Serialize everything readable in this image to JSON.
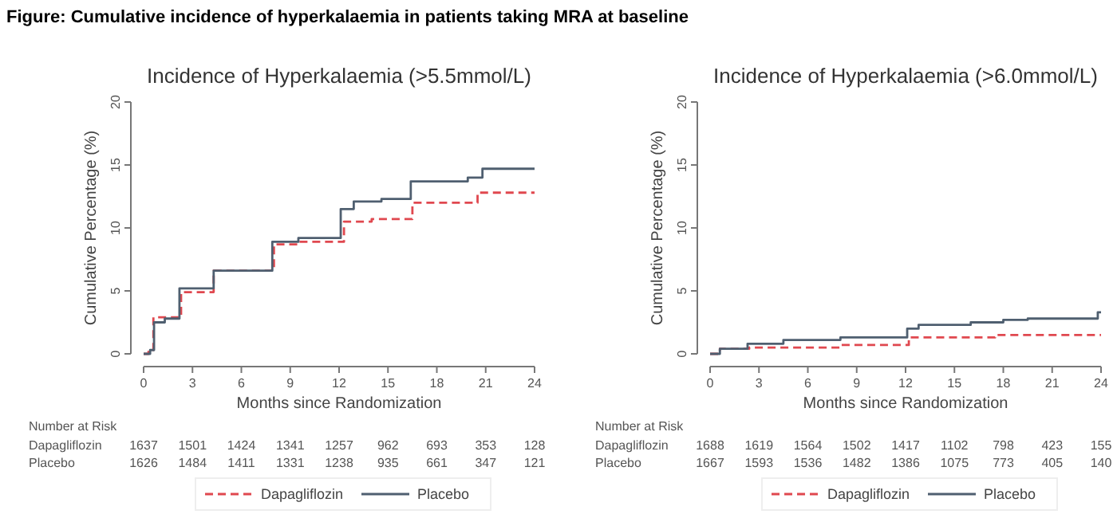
{
  "chart_data": [
    {
      "type": "step",
      "title": "Incidence of Hyperkalaemia (>5.5mmol/L)",
      "xlabel": "Months since Randomization",
      "ylabel": "Cumulative Percentage (%)",
      "xlim": [
        0,
        24
      ],
      "xticks": [
        0,
        3,
        6,
        9,
        12,
        15,
        18,
        21,
        24
      ],
      "ylim": [
        0,
        20
      ],
      "yticks": [
        0,
        5,
        10,
        15,
        20
      ],
      "legend": "bottom",
      "grid": false,
      "annotations": [
        "Figure: Cumulative incidence of hyperkalaemia in patients taking MRA at baseline",
        "Number at Risk",
        "Dapagliflozin",
        "1637",
        "1501",
        "1424",
        "1341",
        "1257",
        "962",
        "693",
        "353",
        "128",
        "Placebo",
        "1626",
        "1484",
        "1411",
        "1331",
        "1238",
        "935",
        "661",
        "347",
        "121"
      ],
      "series": [
        {
          "name": "Dapagliflozin",
          "color": "#e0484f",
          "line_style": "dashed",
          "x": [
            0,
            0.3,
            0.6,
            2.3,
            4.3,
            8.0,
            9.5,
            12.3,
            14.0,
            16.5,
            20.5,
            24
          ],
          "values": [
            0,
            0.3,
            2.9,
            4.9,
            6.6,
            8.7,
            8.9,
            10.5,
            10.7,
            12.0,
            12.8,
            12.8
          ]
        },
        {
          "name": "Placebo",
          "color": "#4f5f70",
          "line_style": "solid",
          "x": [
            0,
            0.4,
            0.64,
            1.3,
            2.2,
            4.3,
            7.9,
            9.5,
            12.1,
            12.9,
            14.6,
            16.4,
            19.9,
            20.8,
            24
          ],
          "values": [
            0,
            0.3,
            2.5,
            2.8,
            5.2,
            6.6,
            8.9,
            9.2,
            11.5,
            12.1,
            12.3,
            13.7,
            14.0,
            14.7,
            14.7
          ]
        }
      ]
    },
    {
      "type": "step",
      "title": "Incidence of Hyperkalaemia (>6.0mmol/L)",
      "xlabel": "Months since Randomization",
      "ylabel": "Cumulative Percentage (%)",
      "xlim": [
        0,
        24
      ],
      "xticks": [
        0,
        3,
        6,
        9,
        12,
        15,
        18,
        21,
        24
      ],
      "ylim": [
        0,
        20
      ],
      "yticks": [
        0,
        5,
        10,
        15,
        20
      ],
      "legend": "bottom",
      "grid": false,
      "annotations": [
        "Number at Risk",
        "Dapagliflozin",
        "1688",
        "1619",
        "1564",
        "1502",
        "1417",
        "1102",
        "798",
        "423",
        "155",
        "Placebo",
        "1667",
        "1593",
        "1536",
        "1482",
        "1386",
        "1075",
        "773",
        "405",
        "140"
      ],
      "series": [
        {
          "name": "Dapagliflozin",
          "color": "#e0484f",
          "line_style": "dashed",
          "x": [
            0,
            0.6,
            2.4,
            8.0,
            12.2,
            17.5,
            24
          ],
          "values": [
            0,
            0.4,
            0.5,
            0.7,
            1.3,
            1.5,
            1.5
          ]
        },
        {
          "name": "Placebo",
          "color": "#4f5f70",
          "line_style": "solid",
          "x": [
            0,
            0.6,
            2.3,
            4.5,
            8.0,
            12.1,
            12.8,
            16.0,
            18.0,
            19.5,
            23.8,
            24
          ],
          "values": [
            0,
            0.4,
            0.8,
            1.1,
            1.3,
            2.0,
            2.3,
            2.5,
            2.7,
            2.8,
            3.3,
            3.3
          ]
        }
      ]
    }
  ]
}
